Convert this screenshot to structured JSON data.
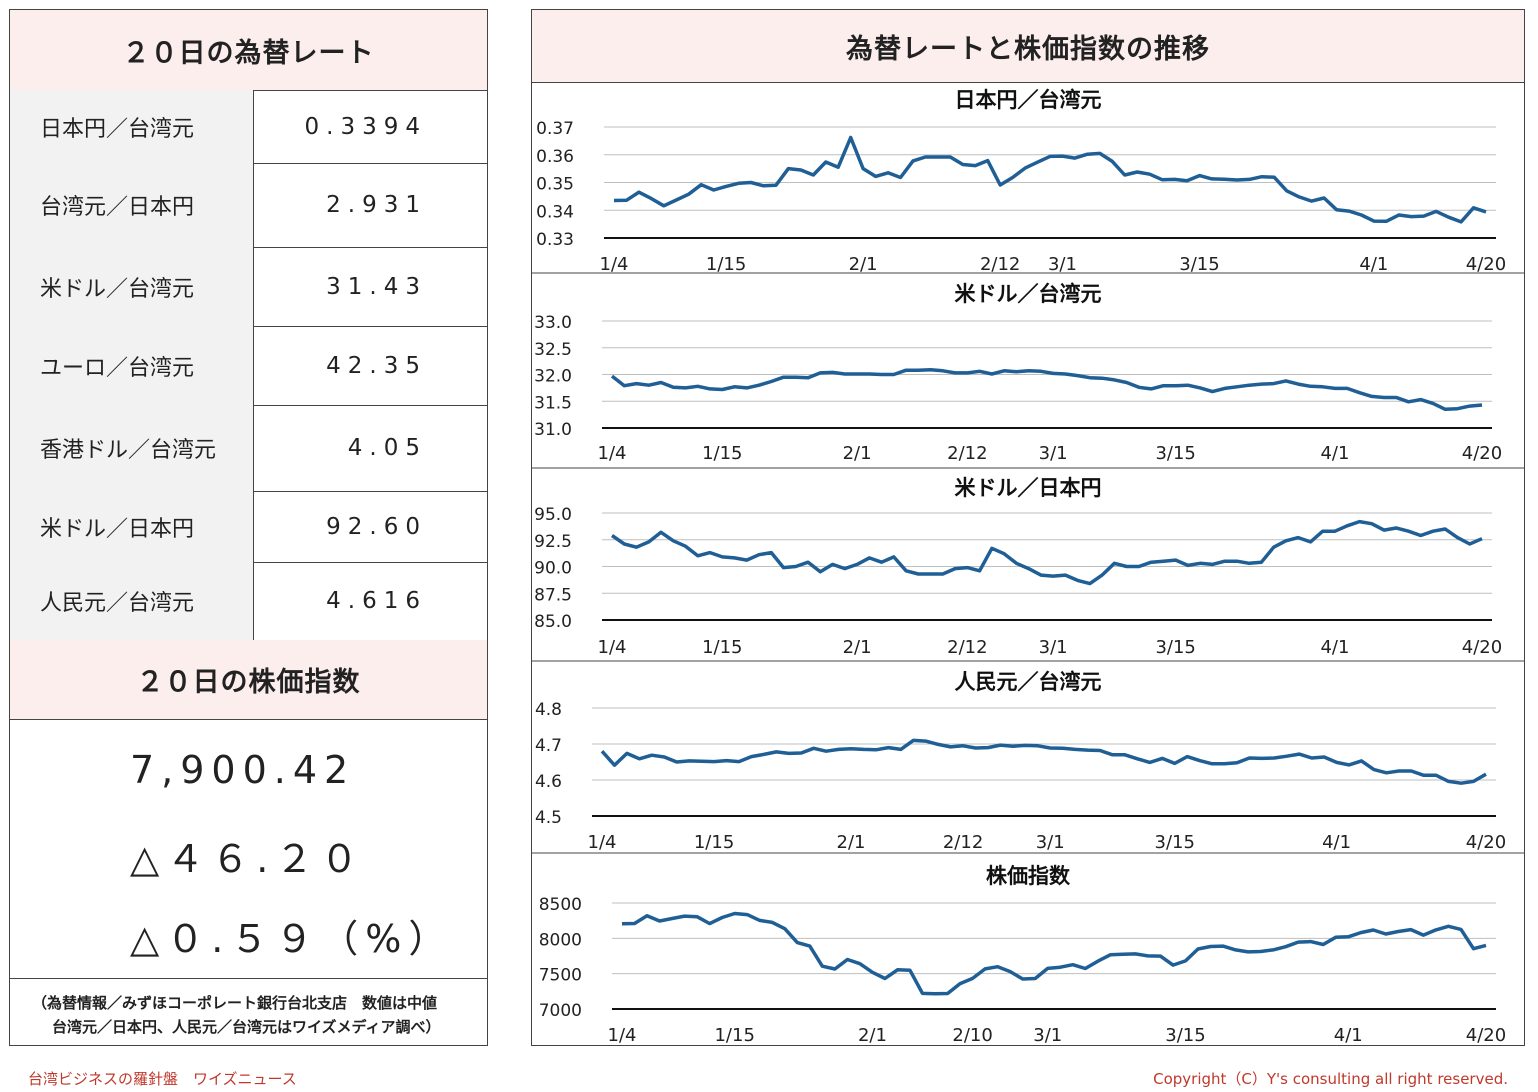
{
  "left": {
    "rates_title": "２０日の為替レート",
    "rates": [
      {
        "label": "日本円／台湾元",
        "value": "0.3394"
      },
      {
        "label": "台湾元／日本円",
        "value": "2.931"
      },
      {
        "label": "米ドル／台湾元",
        "value": "31.43"
      },
      {
        "label": "ユーロ／台湾元",
        "value": "42.35"
      },
      {
        "label": "香港ドル／台湾元",
        "value": "4.05"
      },
      {
        "label": "米ドル／日本円",
        "value": "92.60"
      },
      {
        "label": "人民元／台湾元",
        "value": "4.616"
      }
    ],
    "stock_title": "２０日の株価指数",
    "stock_value": "7,900.42",
    "stock_change": "△４６.２０",
    "stock_change_pct": "△０.５９（%）",
    "note_line1": "（為替情報／みずほコーポレート銀行台北支店　数値は中値",
    "note_line2": "台湾元／日本円、人民元／台湾元はワイズメディア調べ）"
  },
  "right": {
    "title": "為替レートと株価指数の推移"
  },
  "footer": {
    "left": "台湾ビジネスの羅針盤　ワイズニュース",
    "right": "Copyright（C）Y's consulting all right reserved."
  },
  "colors": {
    "line": "#1f5f95",
    "header_bg": "#fdeeee",
    "label_bg": "#f2f2f2",
    "footer_text": "#c0392b"
  },
  "chart_data": [
    {
      "type": "line",
      "title": "日本円／台湾元",
      "ylim": [
        0.33,
        0.37
      ],
      "yticks": [
        "0.37",
        "0.36",
        "0.35",
        "0.34",
        "0.33"
      ],
      "xtick_labels": [
        "1/4",
        "1/15",
        "2/1",
        "2/12",
        "3/1",
        "3/15",
        "4/1",
        "4/20"
      ],
      "xtick_pos": [
        0,
        9,
        20,
        31,
        36,
        47,
        61,
        74
      ],
      "grid": true,
      "values": [
        0.3435,
        0.3436,
        0.3465,
        0.3442,
        0.3416,
        0.3437,
        0.3458,
        0.3492,
        0.3473,
        0.3486,
        0.3497,
        0.35,
        0.3488,
        0.349,
        0.355,
        0.3545,
        0.3527,
        0.3574,
        0.3555,
        0.3662,
        0.355,
        0.3522,
        0.3535,
        0.3518,
        0.3578,
        0.3592,
        0.3592,
        0.3592,
        0.3565,
        0.3561,
        0.3579,
        0.3491,
        0.3518,
        0.3552,
        0.3573,
        0.3594,
        0.3595,
        0.3588,
        0.3602,
        0.3605,
        0.3576,
        0.3527,
        0.3538,
        0.353,
        0.351,
        0.3511,
        0.3506,
        0.3525,
        0.3513,
        0.3512,
        0.3509,
        0.3511,
        0.3521,
        0.3519,
        0.347,
        0.3448,
        0.3433,
        0.3444,
        0.3402,
        0.3397,
        0.3383,
        0.3361,
        0.336,
        0.3383,
        0.3377,
        0.3379,
        0.3396,
        0.3375,
        0.3358,
        0.3409,
        0.3394
      ]
    },
    {
      "type": "line",
      "title": "米ドル／台湾元",
      "ylim": [
        31.0,
        33.0
      ],
      "yticks": [
        "33.0",
        "32.5",
        "32.0",
        "31.5",
        "31.0"
      ],
      "xtick_labels": [
        "1/4",
        "1/15",
        "2/1",
        "2/12",
        "3/1",
        "3/15",
        "4/1",
        "4/20"
      ],
      "xtick_pos": [
        0,
        9,
        20,
        29,
        36,
        46,
        59,
        71
      ],
      "grid": true,
      "values": [
        31.97,
        31.79,
        31.83,
        31.8,
        31.85,
        31.76,
        31.75,
        31.78,
        31.73,
        31.72,
        31.77,
        31.75,
        31.8,
        31.87,
        31.95,
        31.95,
        31.94,
        32.03,
        32.04,
        32.01,
        32.01,
        32.01,
        32.0,
        32.0,
        32.08,
        32.08,
        32.09,
        32.07,
        32.03,
        32.03,
        32.06,
        32.01,
        32.07,
        32.05,
        32.07,
        32.06,
        32.02,
        32.01,
        31.98,
        31.94,
        31.93,
        31.9,
        31.85,
        31.76,
        31.73,
        31.79,
        31.79,
        31.8,
        31.75,
        31.68,
        31.74,
        31.77,
        31.8,
        31.82,
        31.83,
        31.88,
        31.82,
        31.78,
        31.77,
        31.74,
        31.74,
        31.66,
        31.59,
        31.57,
        31.57,
        31.49,
        31.53,
        31.46,
        31.35,
        31.36,
        31.41,
        31.43
      ]
    },
    {
      "type": "line",
      "title": "米ドル／日本円",
      "ylim": [
        85.0,
        95.0
      ],
      "yticks": [
        "95.0",
        "92.5",
        "90.0",
        "87.5",
        "85.0"
      ],
      "xtick_labels": [
        "1/4",
        "1/15",
        "2/1",
        "2/12",
        "3/1",
        "3/15",
        "4/1",
        "4/20"
      ],
      "xtick_pos": [
        0,
        9,
        20,
        29,
        36,
        46,
        59,
        71
      ],
      "grid": true,
      "values": [
        92.9,
        92.1,
        91.8,
        92.3,
        93.2,
        92.4,
        91.9,
        91.0,
        91.3,
        90.9,
        90.8,
        90.6,
        91.1,
        91.3,
        89.9,
        90.0,
        90.4,
        89.5,
        90.2,
        89.8,
        90.2,
        90.8,
        90.4,
        90.9,
        89.6,
        89.3,
        89.3,
        89.3,
        89.8,
        89.9,
        89.6,
        91.7,
        91.2,
        90.3,
        89.8,
        89.2,
        89.1,
        89.2,
        88.7,
        88.4,
        89.2,
        90.3,
        90.0,
        90.0,
        90.4,
        90.5,
        90.6,
        90.1,
        90.3,
        90.2,
        90.5,
        90.5,
        90.3,
        90.4,
        91.8,
        92.4,
        92.7,
        92.3,
        93.3,
        93.3,
        93.8,
        94.2,
        94.0,
        93.4,
        93.6,
        93.3,
        92.9,
        93.3,
        93.5,
        92.7,
        92.1,
        92.6
      ]
    },
    {
      "type": "line",
      "title": "人民元／台湾元",
      "ylim": [
        4.5,
        4.8
      ],
      "yticks": [
        "4.8",
        "4.7",
        "4.6",
        "4.5"
      ],
      "xtick_labels": [
        "1/4",
        "1/15",
        "2/1",
        "2/12",
        "3/1",
        "3/15",
        "4/1",
        "4/20"
      ],
      "xtick_pos": [
        0,
        9,
        20,
        29,
        36,
        46,
        59,
        71
      ],
      "grid": true,
      "values": [
        4.68,
        4.641,
        4.674,
        4.659,
        4.669,
        4.664,
        4.65,
        4.653,
        4.652,
        4.651,
        4.654,
        4.651,
        4.665,
        4.671,
        4.678,
        4.674,
        4.675,
        4.688,
        4.68,
        4.685,
        4.687,
        4.685,
        4.684,
        4.69,
        4.685,
        4.71,
        4.708,
        4.699,
        4.692,
        4.695,
        4.689,
        4.69,
        4.697,
        4.694,
        4.696,
        4.695,
        4.689,
        4.688,
        4.685,
        4.683,
        4.682,
        4.67,
        4.67,
        4.659,
        4.649,
        4.66,
        4.646,
        4.665,
        4.654,
        4.645,
        4.645,
        4.648,
        4.661,
        4.66,
        4.661,
        4.666,
        4.672,
        4.661,
        4.664,
        4.649,
        4.642,
        4.653,
        4.629,
        4.62,
        4.625,
        4.625,
        4.613,
        4.613,
        4.596,
        4.591,
        4.596,
        4.616
      ]
    },
    {
      "type": "line",
      "title": "株価指数",
      "ylim": [
        7000,
        8500
      ],
      "yticks": [
        "8500",
        "8000",
        "7500",
        "7000"
      ],
      "xtick_labels": [
        "1/4",
        "1/15",
        "2/1",
        "2/10",
        "3/1",
        "3/15",
        "4/1",
        "4/20"
      ],
      "xtick_pos": [
        0,
        9,
        20,
        28,
        34,
        45,
        58,
        69
      ],
      "grid": true,
      "values": [
        8207,
        8210,
        8319,
        8245,
        8280,
        8315,
        8306,
        8208,
        8295,
        8351,
        8336,
        8254,
        8225,
        8136,
        7939,
        7890,
        7605,
        7566,
        7700,
        7641,
        7520,
        7432,
        7555,
        7547,
        7221,
        7217,
        7219,
        7360,
        7433,
        7567,
        7598,
        7529,
        7424,
        7432,
        7575,
        7591,
        7627,
        7573,
        7676,
        7767,
        7774,
        7780,
        7751,
        7749,
        7621,
        7680,
        7849,
        7885,
        7890,
        7836,
        7808,
        7814,
        7836,
        7881,
        7946,
        7954,
        7913,
        8015,
        8021,
        8081,
        8118,
        8062,
        8096,
        8123,
        8046,
        8119,
        8170,
        8126,
        7854,
        7900
      ]
    }
  ]
}
